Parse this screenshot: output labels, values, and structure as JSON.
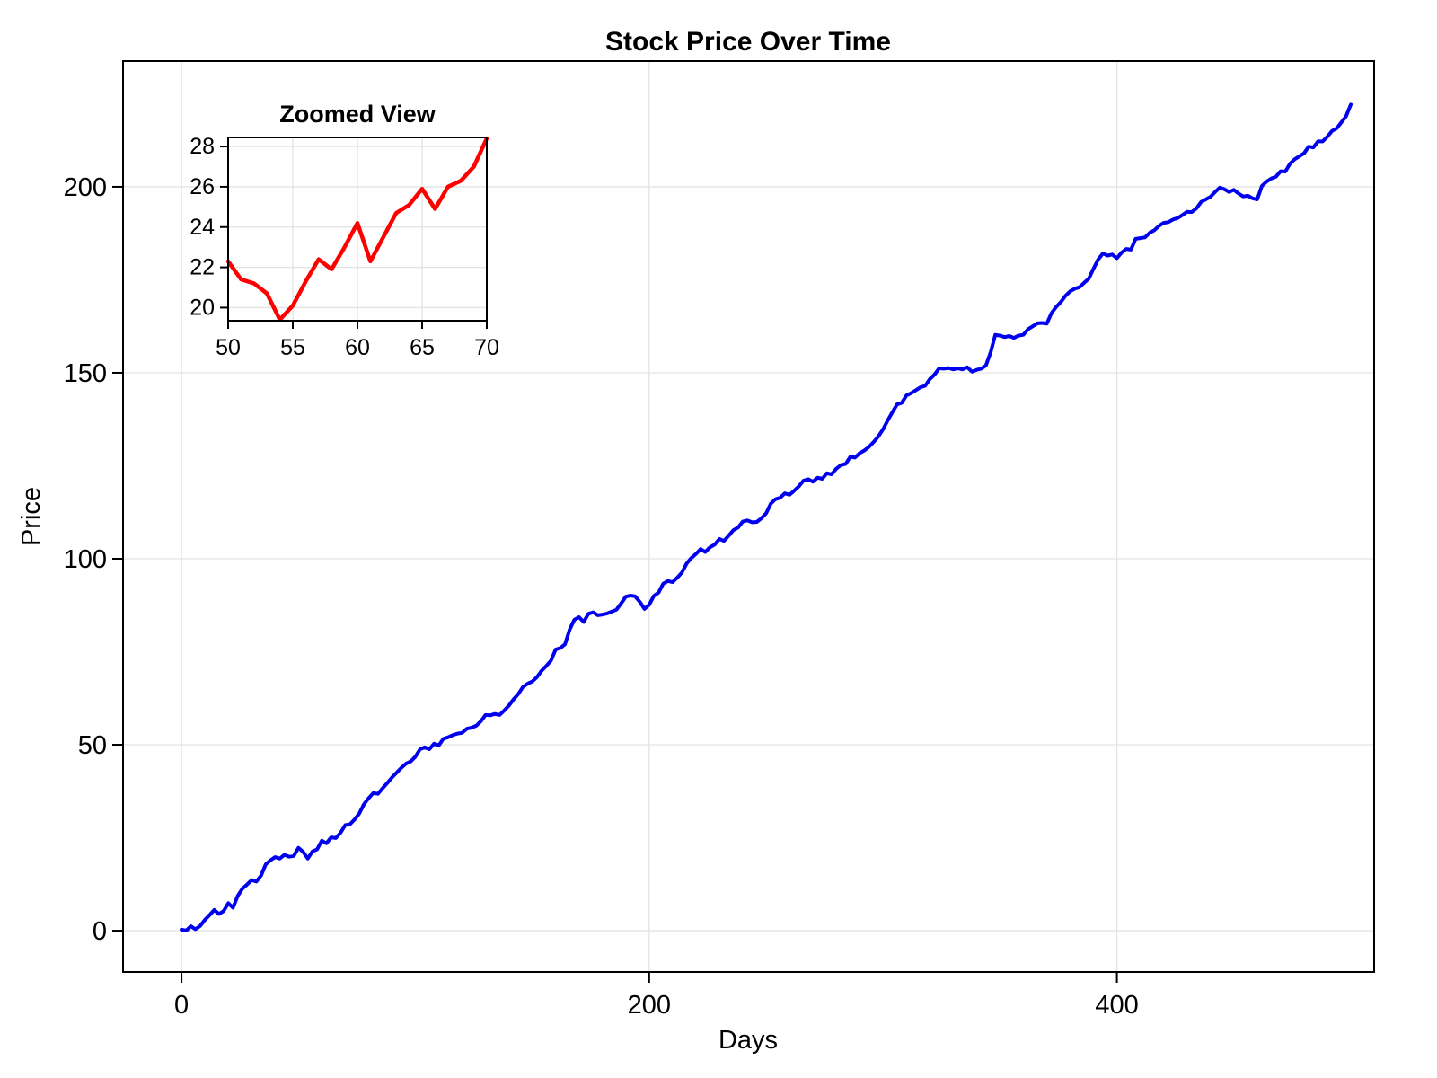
{
  "figure": {
    "background": "#ffffff",
    "frame_color": "#000000",
    "grid_color": "#e3e3e3",
    "text_color": "#000000"
  },
  "chart_data": [
    {
      "type": "line",
      "title": "Stock Price Over Time",
      "xlabel": "Days",
      "ylabel": "Price",
      "xlim": [
        -25,
        510
      ],
      "ylim": [
        -11.1,
        233.8
      ],
      "xticks": [
        0,
        200,
        400
      ],
      "yticks": [
        0,
        50,
        100,
        150,
        200
      ],
      "grid": true,
      "legend": "none",
      "series": [
        {
          "name": "stock-price",
          "color": "#0000ee",
          "width": 4,
          "x_start": 0,
          "x_step": 2,
          "values": [
            0.3,
            0.0,
            1.2,
            0.4,
            1.3,
            2.9,
            4.2,
            5.6,
            4.5,
            5.3,
            7.4,
            6.2,
            9.3,
            11.3,
            12.4,
            13.6,
            13.2,
            14.8,
            17.8,
            18.9,
            19.8,
            19.4,
            20.4,
            19.9,
            20.1,
            22.3,
            21.2,
            19.4,
            21.3,
            21.9,
            24.2,
            23.5,
            25.1,
            24.9,
            26.3,
            28.4,
            28.6,
            29.9,
            31.5,
            34.0,
            35.6,
            37.0,
            36.8,
            38.3,
            39.7,
            41.2,
            42.5,
            43.8,
            44.9,
            45.5,
            46.8,
            48.8,
            49.3,
            48.8,
            50.3,
            49.8,
            51.6,
            52.0,
            52.6,
            53.0,
            53.2,
            54.3,
            54.6,
            55.1,
            56.3,
            58.0,
            57.9,
            58.3,
            58.0,
            59.2,
            60.5,
            62.2,
            63.6,
            65.5,
            66.4,
            67.0,
            68.2,
            69.9,
            71.2,
            72.6,
            75.6,
            76.0,
            77.0,
            81.0,
            83.6,
            84.3,
            83.0,
            85.2,
            85.6,
            84.8,
            85.0,
            85.3,
            85.8,
            86.3,
            88.0,
            89.8,
            90.1,
            89.9,
            88.4,
            86.5,
            87.6,
            90.0,
            90.9,
            93.3,
            94.0,
            93.7,
            94.9,
            96.3,
            98.7,
            100.2,
            101.3,
            102.6,
            101.8,
            103.1,
            103.8,
            105.3,
            104.8,
            106.2,
            107.7,
            108.4,
            110.0,
            110.3,
            109.8,
            109.9,
            110.9,
            112.2,
            114.8,
            116.0,
            116.4,
            117.6,
            117.2,
            118.3,
            119.5,
            121.0,
            121.4,
            120.7,
            121.8,
            121.5,
            123.0,
            122.7,
            124.2,
            125.2,
            125.5,
            127.4,
            127.2,
            128.4,
            129.1,
            130.1,
            131.4,
            132.9,
            134.8,
            137.2,
            139.4,
            141.5,
            141.9,
            143.9,
            144.5,
            145.3,
            146.1,
            146.5,
            148.3,
            149.5,
            151.2,
            151.1,
            151.3,
            150.9,
            151.2,
            150.9,
            151.5,
            150.3,
            150.8,
            151.1,
            152.0,
            155.5,
            160.2,
            160.0,
            159.6,
            159.9,
            159.4,
            160.0,
            160.2,
            161.7,
            162.5,
            163.3,
            163.4,
            163.2,
            166.0,
            167.7,
            169.0,
            170.7,
            171.9,
            172.6,
            173.0,
            174.2,
            175.3,
            178.0,
            180.5,
            182.1,
            181.5,
            181.8,
            180.8,
            182.3,
            183.3,
            183.1,
            186.0,
            186.2,
            186.4,
            187.6,
            188.3,
            189.5,
            190.3,
            190.5,
            191.2,
            191.6,
            192.4,
            193.3,
            193.2,
            194.2,
            195.9,
            196.6,
            197.3,
            198.6,
            199.8,
            199.3,
            198.6,
            199.2,
            198.2,
            197.4,
            197.6,
            196.9,
            196.6,
            200.2,
            201.4,
            202.2,
            202.7,
            204.2,
            204.1,
            206.2,
            207.4,
            208.2,
            209.0,
            210.8,
            210.6,
            212.2,
            212.2,
            213.5,
            215.0,
            215.7,
            217.3,
            219.0,
            222.1
          ]
        }
      ]
    },
    {
      "type": "line",
      "title": "Zoomed View",
      "xlabel": "",
      "ylabel": "",
      "xlim": [
        50,
        70
      ],
      "ylim": [
        19.35,
        28.45
      ],
      "xticks": [
        50,
        55,
        60,
        65,
        70
      ],
      "yticks": [
        20,
        22,
        24,
        26,
        28
      ],
      "grid": true,
      "legend": "none",
      "series": [
        {
          "name": "zoomed-price",
          "color": "#ff0000",
          "width": 4.5,
          "x_start": 50,
          "x_step": 1,
          "values": [
            22.3,
            21.4,
            21.2,
            20.7,
            19.4,
            20.1,
            21.3,
            22.4,
            21.9,
            23.0,
            24.2,
            22.3,
            23.5,
            24.7,
            25.1,
            25.9,
            24.9,
            26.0,
            26.3,
            27.0,
            28.4
          ]
        }
      ]
    }
  ]
}
